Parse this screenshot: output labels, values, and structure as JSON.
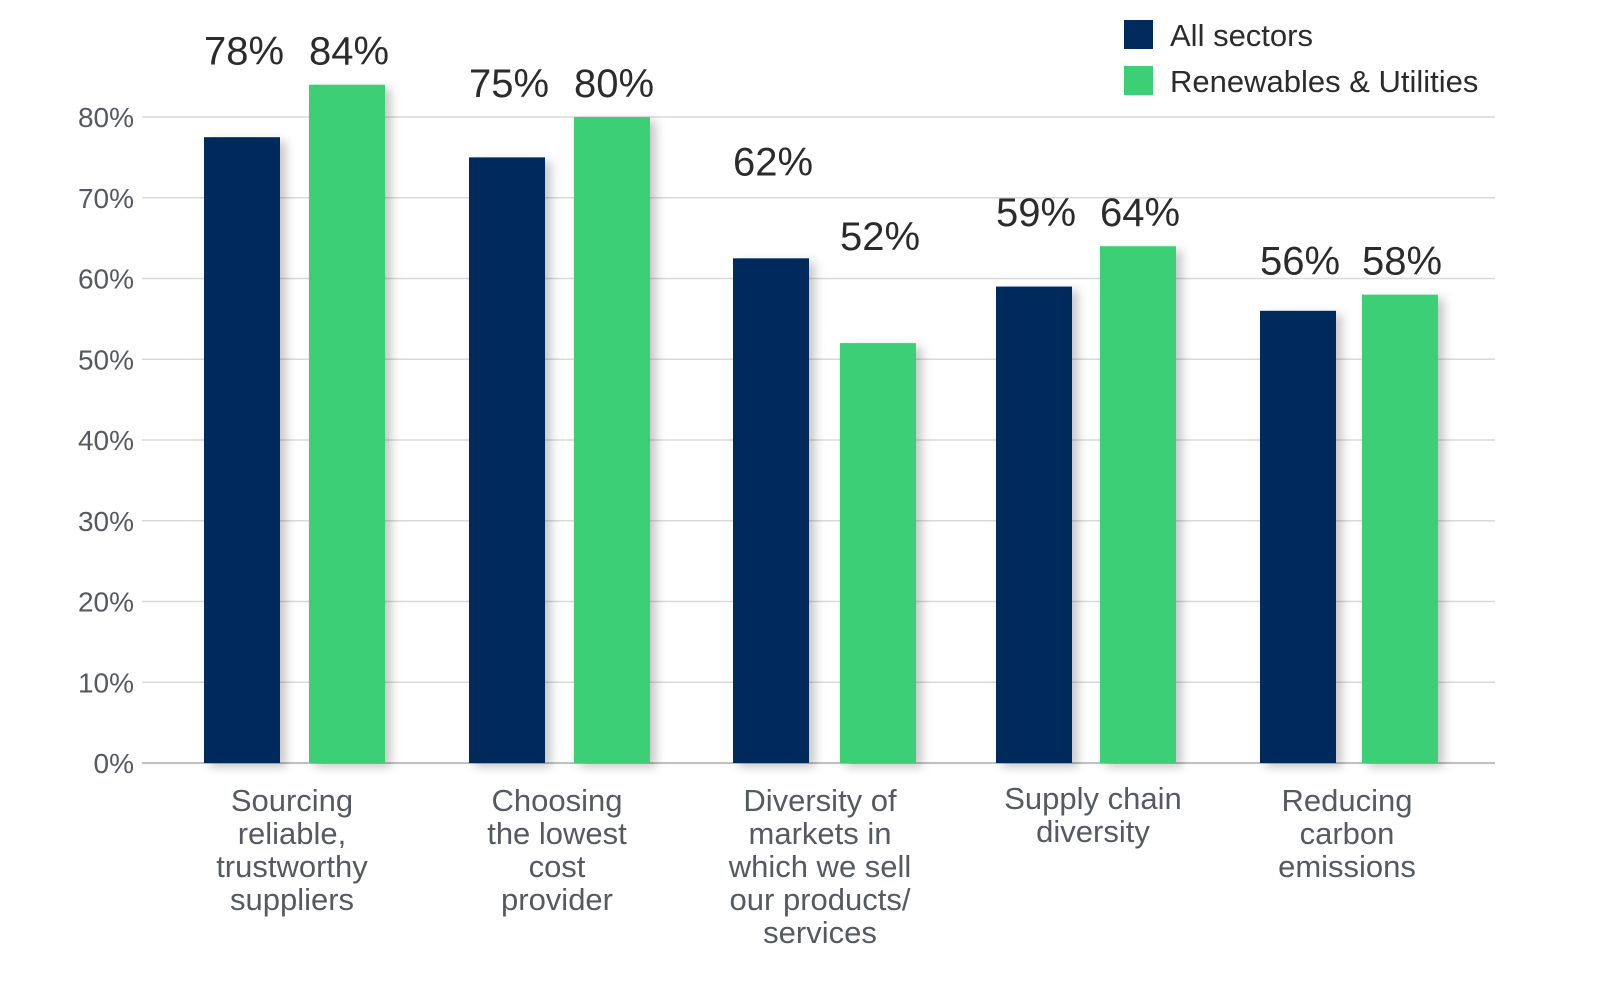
{
  "colors": {
    "all_sectors": "#002b5c",
    "renewables": "#3ccf76",
    "grid": "#d9d9d9",
    "axis": "#bfbfbf"
  },
  "chart_data": {
    "type": "bar",
    "title": "",
    "xlabel": "",
    "ylabel": "",
    "ylim": [
      0,
      80
    ],
    "yticks": [
      "0%",
      "10%",
      "20%",
      "30%",
      "40%",
      "50%",
      "60%",
      "70%",
      "80%"
    ],
    "yticks_values": [
      0,
      10,
      20,
      30,
      40,
      50,
      60,
      70,
      80
    ],
    "grid": true,
    "legend_position": "top-right",
    "categories": [
      {
        "lines": [
          "Sourcing",
          "reliable,",
          "trustworthy",
          "suppliers"
        ]
      },
      {
        "lines": [
          "Choosing",
          "the lowest",
          "cost",
          "provider"
        ]
      },
      {
        "lines": [
          "Diversity of",
          "markets in",
          "which we sell",
          "our products/",
          "services"
        ]
      },
      {
        "lines": [
          "Supply chain",
          "diversity"
        ]
      },
      {
        "lines": [
          "Reducing",
          "carbon",
          "emissions"
        ]
      }
    ],
    "series": [
      {
        "name": "All sectors",
        "color_key": "all_sectors",
        "values": [
          77.5,
          75,
          62.5,
          59,
          56
        ],
        "labels": [
          "78%",
          "75%",
          "62%",
          "59%",
          "56%"
        ]
      },
      {
        "name": "Renewables & Utilities",
        "color_key": "renewables",
        "values": [
          84,
          80,
          52,
          64,
          58
        ],
        "labels": [
          "84%",
          "80%",
          "52%",
          "64%",
          "58%"
        ]
      }
    ]
  }
}
